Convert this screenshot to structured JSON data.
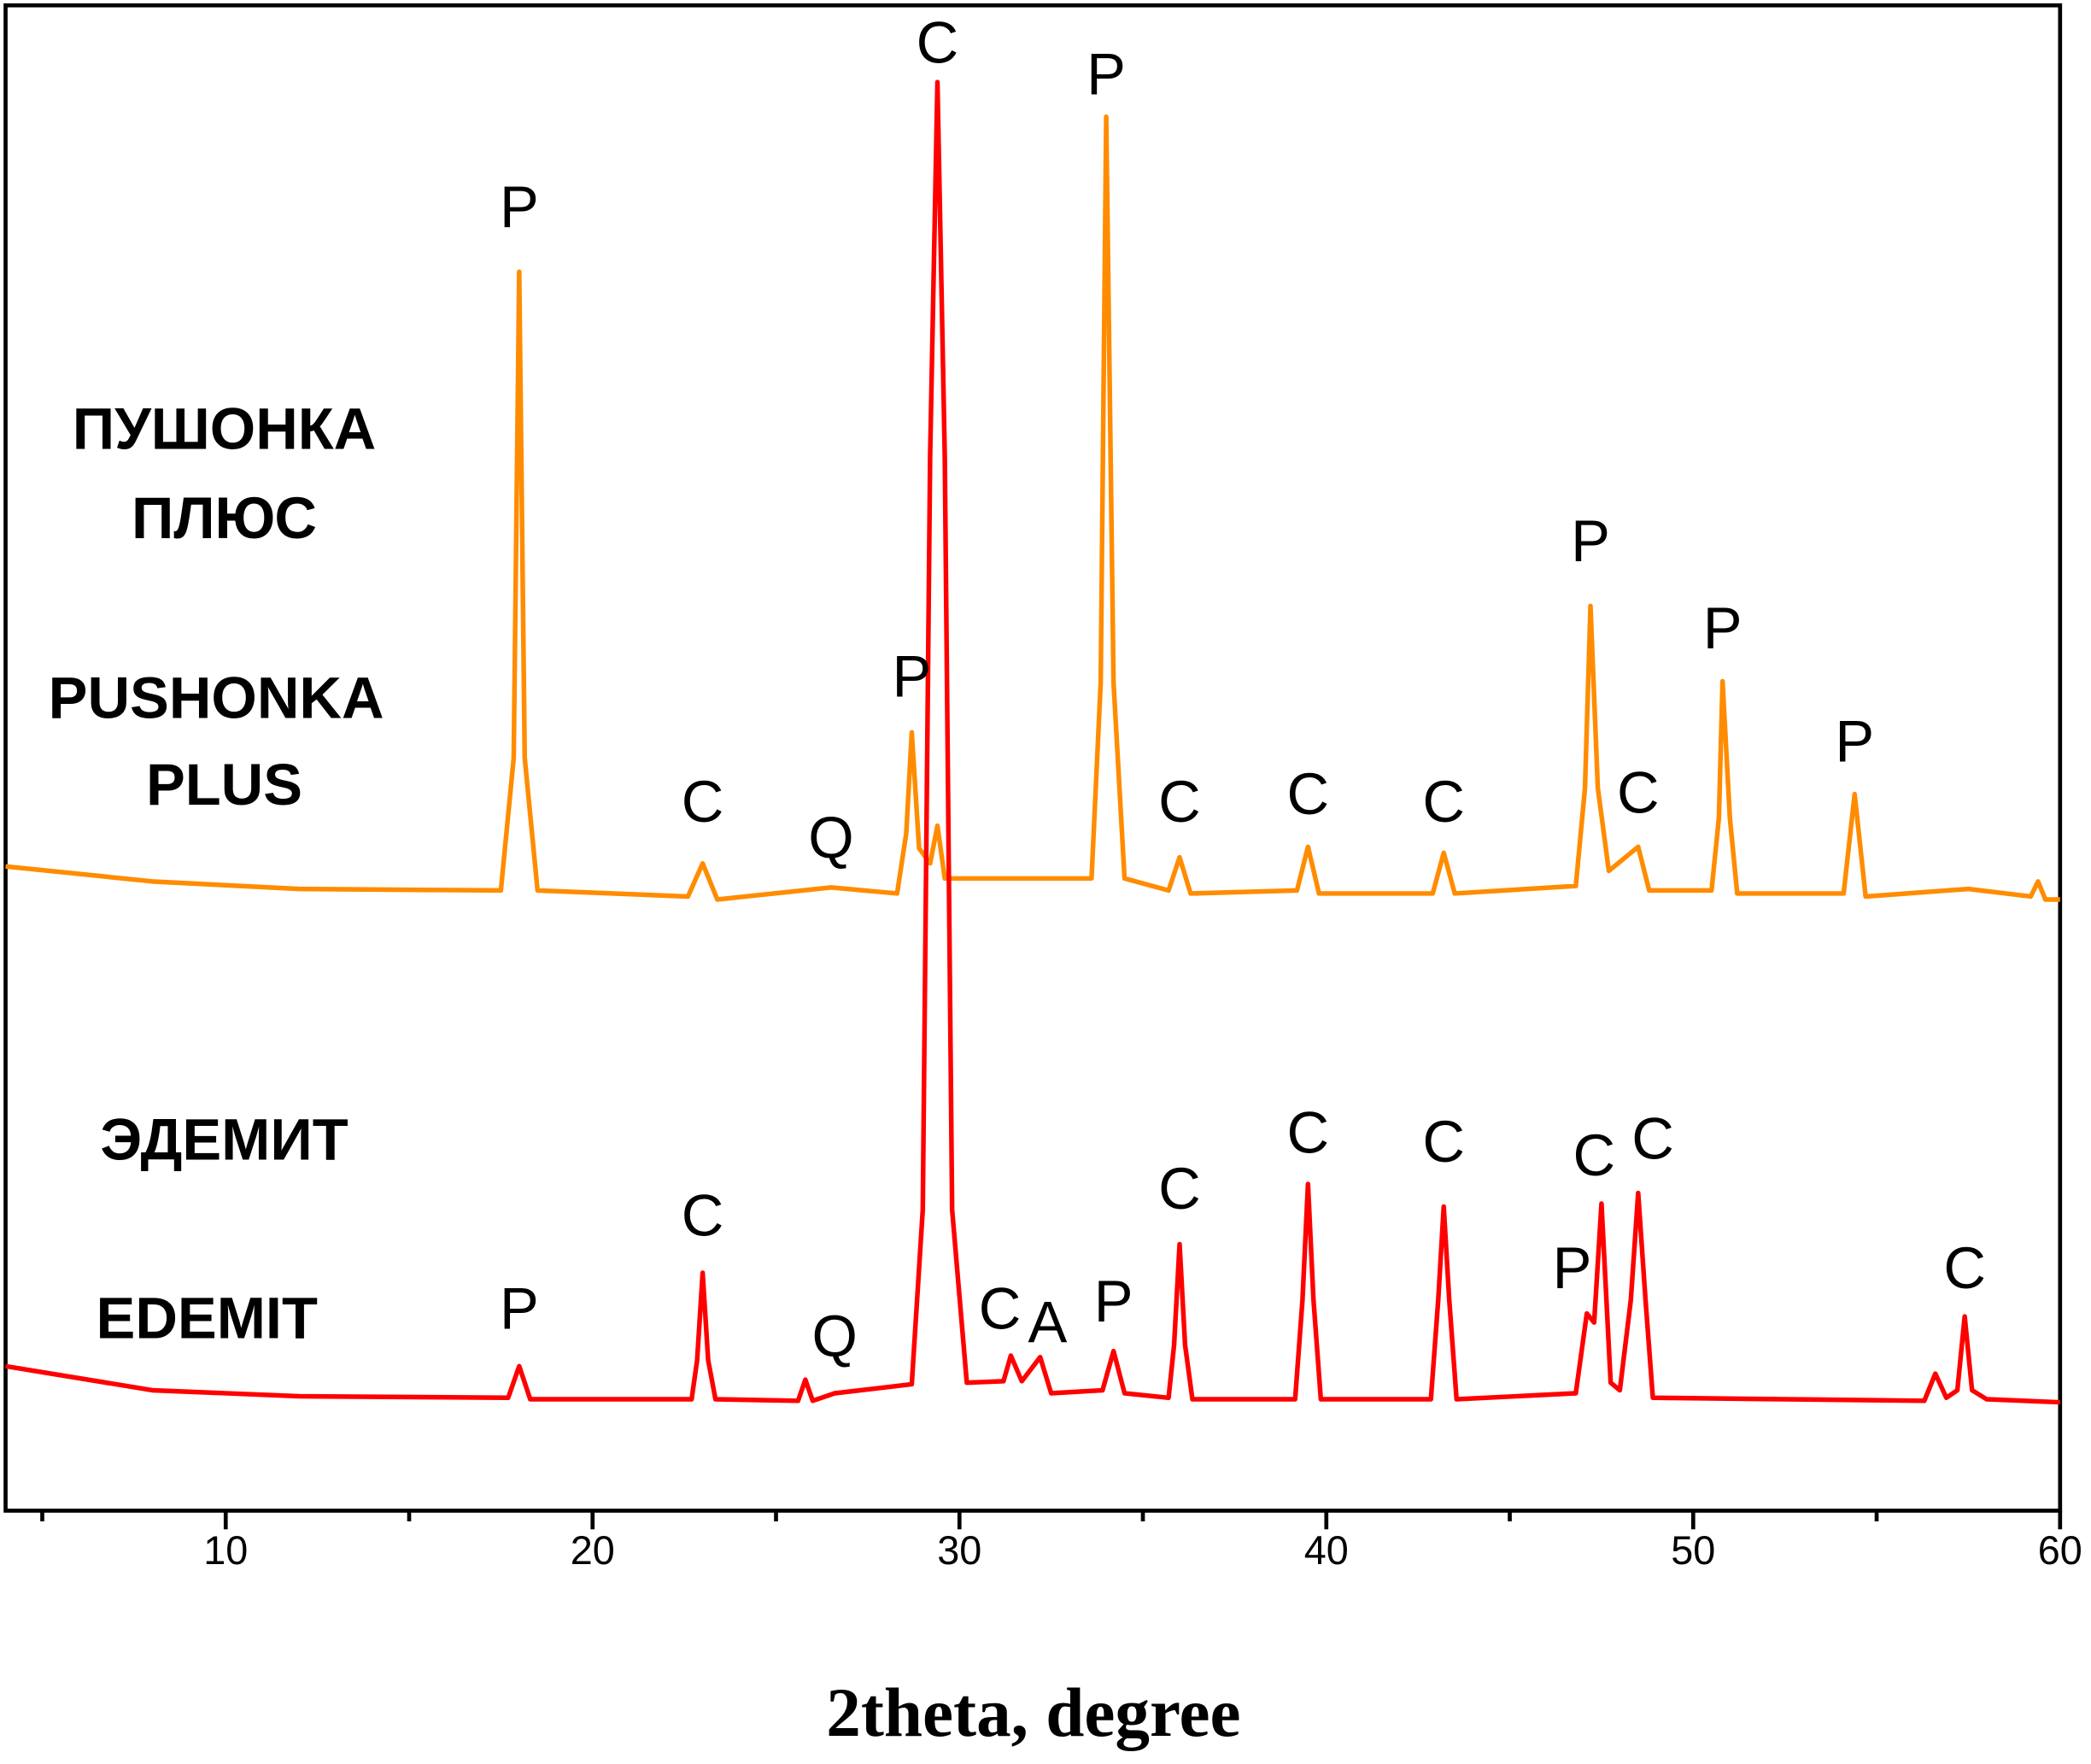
{
  "chart_data": {
    "type": "line",
    "xlabel": "2theta, degree",
    "xlim": [
      4,
      60
    ],
    "ylim": [
      0,
      100
    ],
    "xticks": [
      10,
      20,
      30,
      40,
      50,
      60
    ],
    "xminorticks": [
      5,
      15,
      25,
      35,
      45,
      55
    ],
    "sample_labels": [
      "ПУШОНКА",
      "ПЛЮС",
      "PUSHONKA",
      "PLUS",
      "ЭДЕМИТ",
      "EDEMIT"
    ],
    "series": [
      {
        "color": "#ff8c00",
        "x": [
          4,
          8,
          12,
          17.5,
          17.85,
          18.0,
          18.15,
          18.5,
          22.6,
          23.0,
          23.4,
          26.5,
          28.3,
          28.55,
          28.7,
          28.9,
          29.2,
          29.4,
          29.6,
          33.6,
          33.85,
          34.0,
          34.2,
          34.5,
          35.7,
          36.0,
          36.3,
          39.2,
          39.5,
          39.8,
          42.9,
          43.2,
          43.5,
          46.8,
          47.05,
          47.2,
          47.4,
          47.7,
          48.5,
          48.8,
          50.5,
          50.7,
          50.8,
          51.0,
          51.2,
          54.1,
          54.4,
          54.7,
          57.5,
          59.2,
          59.4,
          59.6,
          60
        ],
        "values": [
          42.8,
          41.8,
          41.3,
          41.2,
          50,
          82.3,
          50,
          41.2,
          40.8,
          43.0,
          40.6,
          41.4,
          41.0,
          45,
          51.7,
          44,
          43,
          45.5,
          42,
          42,
          55,
          92.6,
          55,
          42,
          41.2,
          43.4,
          41,
          41.2,
          44.1,
          41,
          41,
          43.7,
          41,
          41.5,
          48,
          60.1,
          48,
          42.5,
          44.1,
          41.2,
          41.2,
          46,
          55.1,
          46,
          41,
          41,
          47.6,
          40.8,
          41.3,
          40.8,
          41.8,
          40.6,
          40.6
        ]
      },
      {
        "color": "#ff0000",
        "x": [
          4,
          8,
          12,
          17.7,
          18.0,
          18.3,
          22.7,
          22.85,
          23.0,
          23.15,
          23.35,
          25.6,
          25.8,
          26.0,
          26.6,
          28.7,
          29.0,
          29.2,
          29.4,
          29.6,
          29.8,
          30.2,
          31.2,
          31.4,
          31.7,
          32.2,
          32.5,
          33.9,
          34.2,
          34.5,
          35.7,
          35.85,
          36.0,
          36.15,
          36.35,
          39.15,
          39.35,
          39.5,
          39.65,
          39.85,
          42.85,
          43.05,
          43.2,
          43.35,
          43.55,
          46.8,
          47.1,
          47.3,
          47.5,
          47.75,
          48.0,
          48.3,
          48.5,
          48.7,
          48.9,
          56.3,
          56.6,
          56.9,
          57.2,
          57.4,
          57.6,
          58,
          60
        ],
        "values": [
          9.6,
          8.0,
          7.6,
          7.5,
          9.6,
          7.4,
          7.4,
          10,
          15.8,
          10,
          7.4,
          7.3,
          8.7,
          7.3,
          7.8,
          8.4,
          20,
          70,
          94.9,
          70,
          20,
          8.5,
          8.6,
          10.3,
          8.6,
          10.2,
          7.8,
          8,
          10.6,
          7.8,
          7.5,
          11,
          17.7,
          11,
          7.4,
          7.4,
          14,
          21.7,
          14,
          7.4,
          7.4,
          14,
          20.2,
          14,
          7.4,
          7.8,
          13.1,
          12.5,
          20.4,
          8.5,
          8,
          14,
          21.1,
          14,
          7.5,
          7.3,
          9.1,
          7.5,
          8,
          12.9,
          8,
          7.4,
          7.2
        ]
      }
    ],
    "annotations": [
      {
        "text": "P",
        "x": 18.0,
        "y": 86.3
      },
      {
        "text": "C",
        "x": 23.0,
        "y": 46.8
      },
      {
        "text": "Q",
        "x": 26.5,
        "y": 44.4
      },
      {
        "text": "P",
        "x": 28.7,
        "y": 55.1
      },
      {
        "text": "C",
        "x": 29.4,
        "y": 97.2
      },
      {
        "text": "P",
        "x": 34.0,
        "y": 95.1
      },
      {
        "text": "C",
        "x": 36.0,
        "y": 46.8
      },
      {
        "text": "C",
        "x": 39.5,
        "y": 47.3
      },
      {
        "text": "C",
        "x": 43.2,
        "y": 46.8
      },
      {
        "text": "P",
        "x": 47.2,
        "y": 64.1
      },
      {
        "text": "C",
        "x": 48.5,
        "y": 47.4
      },
      {
        "text": "P",
        "x": 50.8,
        "y": 58.3
      },
      {
        "text": "P",
        "x": 54.4,
        "y": 50.8
      },
      {
        "text": "P",
        "x": 18.0,
        "y": 13.1
      },
      {
        "text": "C",
        "x": 23.0,
        "y": 19.3
      },
      {
        "text": "Q",
        "x": 26.6,
        "y": 11.3
      },
      {
        "text": "C",
        "x": 31.1,
        "y": 13.1
      },
      {
        "text": "A",
        "x": 32.4,
        "y": 12.2
      },
      {
        "text": "P",
        "x": 34.2,
        "y": 13.6
      },
      {
        "text": "C",
        "x": 36.0,
        "y": 21.1
      },
      {
        "text": "C",
        "x": 39.5,
        "y": 24.8
      },
      {
        "text": "C",
        "x": 43.2,
        "y": 24.2
      },
      {
        "text": "P",
        "x": 46.7,
        "y": 15.8
      },
      {
        "text": "C",
        "x": 47.3,
        "y": 23.3
      },
      {
        "text": "C",
        "x": 48.9,
        "y": 24.4
      },
      {
        "text": "C",
        "x": 57.4,
        "y": 15.8
      }
    ]
  }
}
